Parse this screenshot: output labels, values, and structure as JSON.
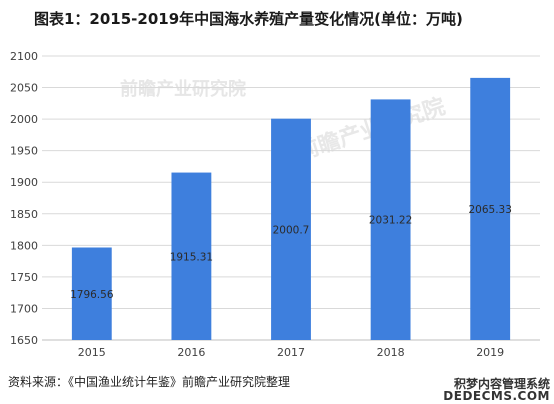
{
  "title": "图表1：2015-2019年中国海水养殖产量变化情况(单位：万吨)",
  "source": "资料来源：《中国渔业统计年鉴》前瞻产业研究院整理",
  "watermark": {
    "line1": "前瞻产业研究院",
    "line2": "DEDECMS.COM",
    "logo_text": "积梦内容管理系统"
  },
  "colors": {
    "bar": "#3e7fdd",
    "grid": "#d9d9d9",
    "axis": "#bfbfbf",
    "text": "#404040"
  },
  "chart_data": {
    "type": "bar",
    "title": "图表1：2015-2019年中国海水养殖产量变化情况(单位：万吨)",
    "categories": [
      "2015",
      "2016",
      "2017",
      "2018",
      "2019"
    ],
    "values": [
      1796.56,
      1915.31,
      2000.7,
      2031.22,
      2065.33
    ],
    "value_labels": [
      "1796.56",
      "1915.31",
      "2000.7",
      "2031.22",
      "2065.33"
    ],
    "ylim": [
      1650,
      2100
    ],
    "yticks": [
      "1650",
      "1700",
      "1750",
      "1800",
      "1850",
      "1900",
      "1950",
      "2000",
      "2050",
      "2100"
    ],
    "grid": true,
    "legend": "none"
  }
}
